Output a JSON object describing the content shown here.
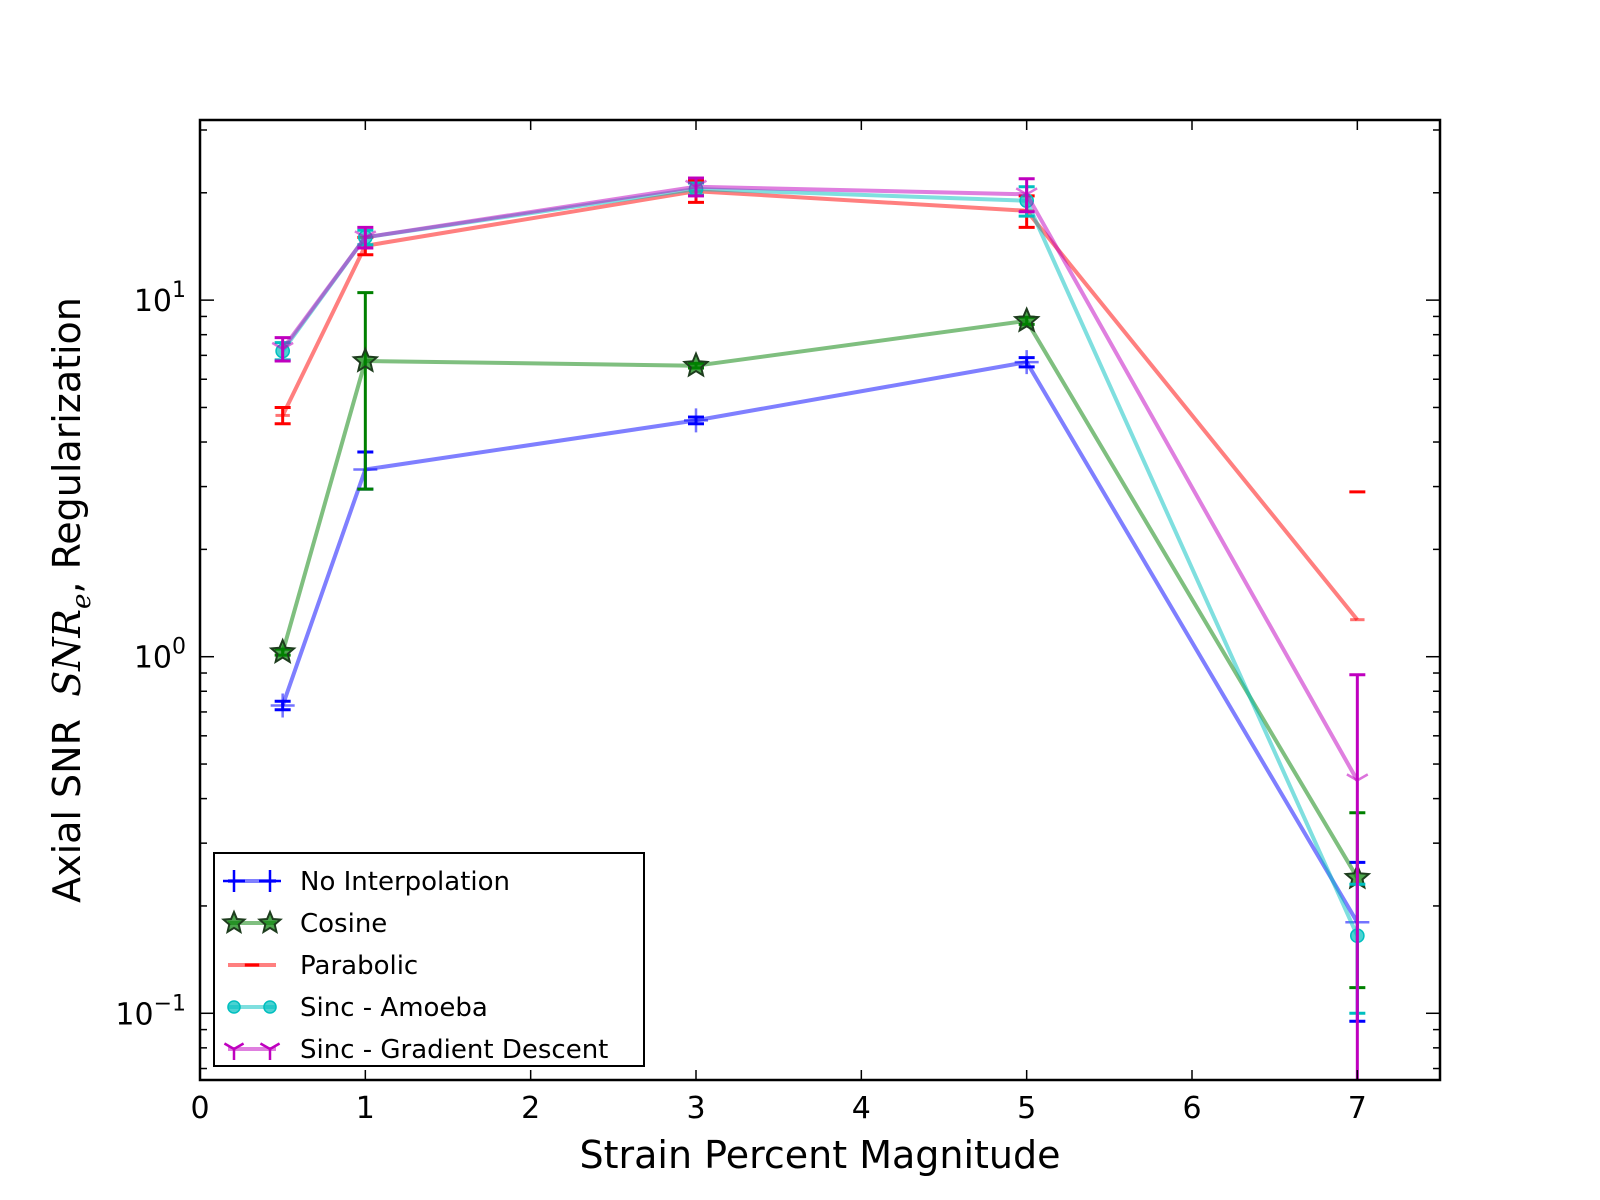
{
  "chart_data": {
    "type": "line",
    "title": "",
    "xlabel": "Strain Percent Magnitude",
    "ylabel": "Axial SNR",
    "ylabel_math_symbol": "SNR",
    "ylabel_math_subscript": "e",
    "ylabel_suffix": ", Regularization",
    "xlim": [
      0,
      7.5
    ],
    "ylim": [
      0.065,
      32
    ],
    "yscale": "log",
    "grid": false,
    "legend_position": "lower-left",
    "x_ticks": [
      {
        "value": 0,
        "label": "0"
      },
      {
        "value": 1,
        "label": "1"
      },
      {
        "value": 2,
        "label": "2"
      },
      {
        "value": 3,
        "label": "3"
      },
      {
        "value": 4,
        "label": "4"
      },
      {
        "value": 5,
        "label": "5"
      },
      {
        "value": 6,
        "label": "6"
      },
      {
        "value": 7,
        "label": "7"
      }
    ],
    "y_ticks": [
      {
        "value": 0.1,
        "base": "10",
        "exp": "−1"
      },
      {
        "value": 1,
        "base": "10",
        "exp": "0"
      },
      {
        "value": 10,
        "base": "10",
        "exp": "1"
      }
    ],
    "x": [
      0.5,
      1,
      3,
      5,
      7
    ],
    "series": [
      {
        "name": "No Interpolation",
        "color": "#0000ff",
        "alpha": 0.5,
        "marker": "plus",
        "values": [
          0.73,
          3.35,
          4.6,
          6.7,
          0.18
        ],
        "err_low": [
          0.71,
          2.95,
          4.5,
          6.5,
          0.095
        ],
        "err_high": [
          0.75,
          3.75,
          4.7,
          6.9,
          0.265
        ]
      },
      {
        "name": "Cosine",
        "color": "#008000",
        "alpha": 0.5,
        "marker": "star",
        "values": [
          1.03,
          6.75,
          6.55,
          8.75,
          0.24
        ],
        "err_low": [
          1.01,
          2.95,
          6.45,
          8.55,
          0.118
        ],
        "err_high": [
          1.05,
          10.5,
          6.65,
          8.95,
          0.365
        ]
      },
      {
        "name": "Parabolic",
        "color": "#ff0000",
        "alpha": 0.5,
        "marker": "hline",
        "values": [
          4.75,
          14.2,
          20.2,
          17.8,
          1.27
        ],
        "err_low": [
          4.5,
          13.4,
          18.8,
          16.0,
          null
        ],
        "err_high": [
          5.0,
          15.0,
          21.6,
          19.6,
          2.9
        ]
      },
      {
        "name": "Sinc - Amoeba",
        "color": "#00bfbf",
        "alpha": 0.5,
        "marker": "circle",
        "values": [
          7.2,
          15.0,
          20.5,
          19.0,
          0.165
        ],
        "err_low": [
          6.8,
          14.3,
          19.7,
          17.2,
          0.1
        ],
        "err_high": [
          7.6,
          15.7,
          21.3,
          20.8,
          0.23
        ]
      },
      {
        "name": "Sinc - Gradient Descent",
        "color": "#bf00bf",
        "alpha": 0.5,
        "marker": "tri_down",
        "values": [
          7.3,
          15.0,
          20.8,
          19.8,
          0.45
        ],
        "err_low": [
          6.75,
          14.0,
          19.6,
          17.7,
          0.06
        ],
        "err_high": [
          7.85,
          16.0,
          22.0,
          21.9,
          0.89
        ]
      }
    ]
  }
}
